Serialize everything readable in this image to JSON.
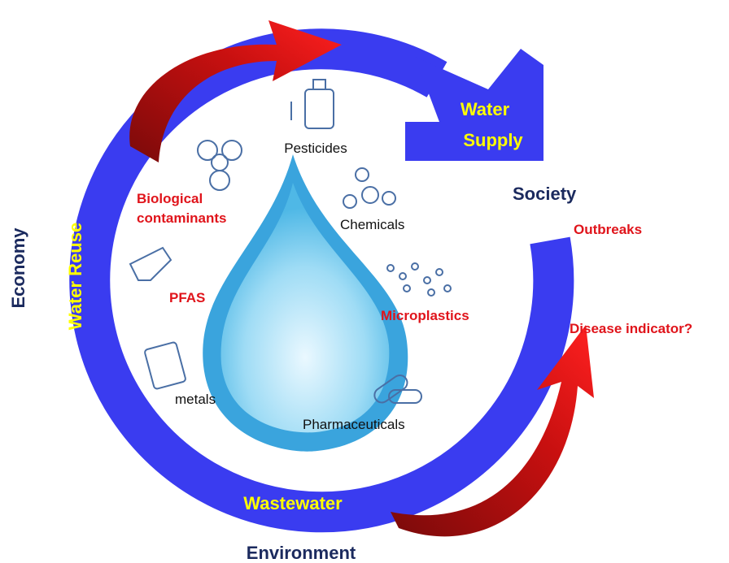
{
  "cycle": {
    "water_supply": [
      "Water",
      "Supply"
    ],
    "water_reuse": "Water Reuse",
    "wastewater": "Wastewater"
  },
  "outer": {
    "society": "Society",
    "economy": "Economy",
    "environment": "Environment"
  },
  "outcomes": {
    "outbreaks": "Outbreaks",
    "disease_indicator": "Disease indicator?"
  },
  "contaminants": {
    "pesticides": "Pesticides",
    "chemicals": "Chemicals",
    "microplastics": "Microplastics",
    "pharmaceuticals": "Pharmaceuticals",
    "metals": "metals",
    "pfas": "PFAS",
    "biological": [
      "Biological",
      "contaminants"
    ]
  }
}
